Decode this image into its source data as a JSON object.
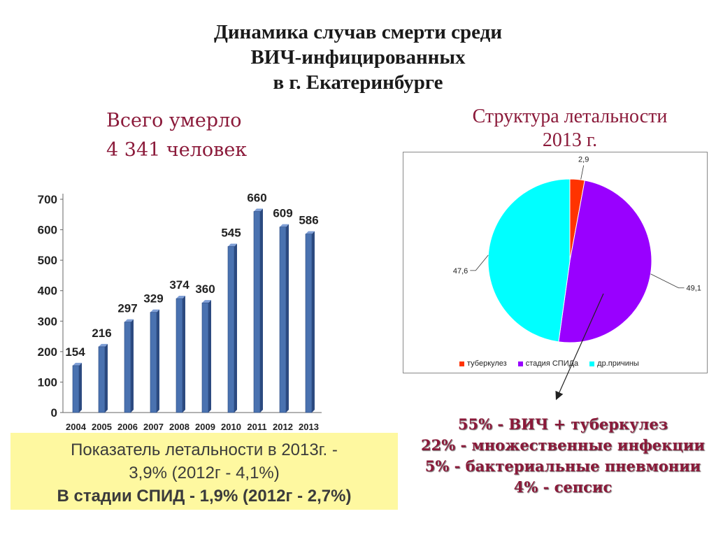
{
  "title": {
    "lines": [
      "Динамика случав смерти среди",
      "ВИЧ-инфицированных",
      "в г. Екатеринбурге"
    ]
  },
  "left_heading": {
    "line1": "Всего умерло",
    "line2": "4 341 человек"
  },
  "right_heading": {
    "line1": "Структура летальности",
    "line2": "2013 г."
  },
  "info_box": {
    "line1": "Показатель летальности в 2013г. -",
    "line2": "3,9% (2012г - 4,1%)",
    "line3": "В стадии СПИД - 1,9% (2012г -  2,7%)"
  },
  "causes": [
    "55% -  ВИЧ + туберкулез",
    "22% - множественные инфекции",
    "5% - бактериальные пневмонии",
    "4% - сепсис"
  ],
  "colors": {
    "bar": "#4a72b0",
    "tb": "#ff3300",
    "aids": "#9900ff",
    "other": "#00ffff",
    "heading": "#8b1a3a",
    "box": "#fef8a0"
  },
  "chart_data": [
    {
      "type": "bar",
      "categories": [
        "2004",
        "2005",
        "2006",
        "2007",
        "2008",
        "2009",
        "2010",
        "2011",
        "2012",
        "2013"
      ],
      "values": [
        154,
        216,
        297,
        329,
        374,
        360,
        545,
        660,
        609,
        586
      ],
      "data_labels": [
        "154",
        "216",
        "297",
        "329",
        "374",
        "360",
        "545",
        "660",
        "609",
        "586"
      ],
      "ylim": [
        0,
        700
      ],
      "yticks": [
        "0",
        "100",
        "200",
        "300",
        "400",
        "500",
        "600",
        "700"
      ],
      "grid": false
    },
    {
      "type": "pie",
      "labels": [
        "туберкулез",
        "стадия СПИДа",
        "др.причины"
      ],
      "values": [
        2.9,
        49.1,
        47.6
      ],
      "data_labels": [
        "2,9",
        "49,1",
        "47,6"
      ],
      "legend": "bottom"
    }
  ]
}
